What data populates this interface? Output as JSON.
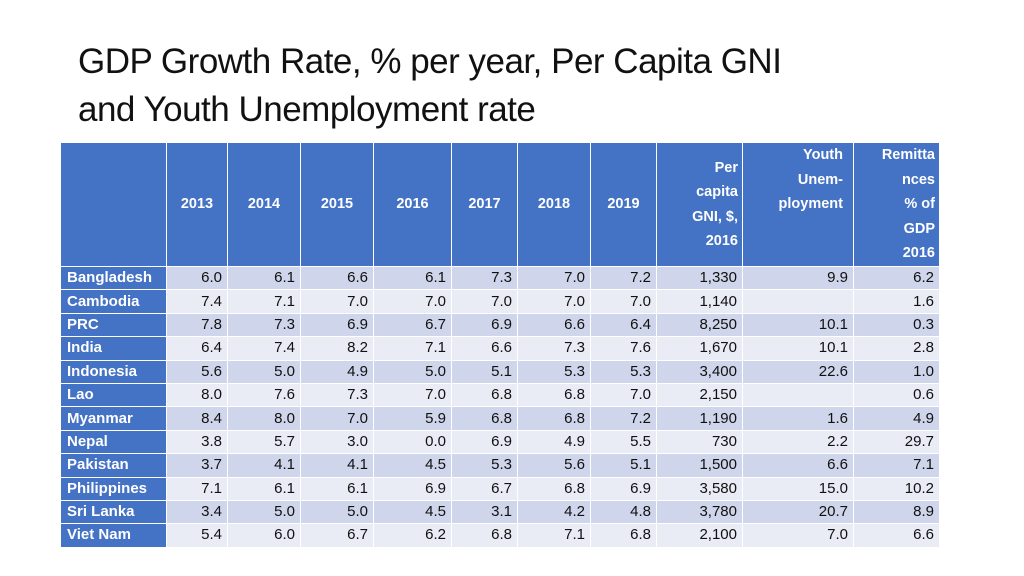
{
  "title_line1": "GDP Growth Rate, % per year, Per Capita GNI",
  "title_line2": "and Youth Unemployment rate",
  "headers": {
    "country": "",
    "y2013": "2013",
    "y2014": "2014",
    "y2015": "2015",
    "y2016": "2016",
    "y2017": "2017",
    "y2018": "2018",
    "y2019": "2019",
    "gni": [
      "Per",
      "capita",
      "GNI, $,",
      "2016"
    ],
    "youth": [
      "Youth",
      "Unem-",
      "ployment"
    ],
    "remit": [
      "Remitta",
      "nces",
      "% of",
      "GDP",
      "2016"
    ]
  },
  "rows": [
    {
      "country": "Bangladesh",
      "v": [
        "6.0",
        "6.1",
        "6.6",
        "6.1",
        "7.3",
        "7.0",
        "7.2"
      ],
      "gni": "1,330",
      "youth": "9.9",
      "remit": "6.2"
    },
    {
      "country": "Cambodia",
      "v": [
        "7.4",
        "7.1",
        "7.0",
        "7.0",
        "7.0",
        "7.0",
        "7.0"
      ],
      "gni": "1,140",
      "youth": "",
      "remit": "1.6"
    },
    {
      "country": "PRC",
      "v": [
        "7.8",
        "7.3",
        "6.9",
        "6.7",
        "6.9",
        "6.6",
        "6.4"
      ],
      "gni": "8,250",
      "youth": "10.1",
      "remit": "0.3"
    },
    {
      "country": "India",
      "v": [
        "6.4",
        "7.4",
        "8.2",
        "7.1",
        "6.6",
        "7.3",
        "7.6"
      ],
      "gni": "1,670",
      "youth": "10.1",
      "remit": "2.8"
    },
    {
      "country": "Indonesia",
      "v": [
        "5.6",
        "5.0",
        "4.9",
        "5.0",
        "5.1",
        "5.3",
        "5.3"
      ],
      "gni": "3,400",
      "youth": "22.6",
      "remit": "1.0"
    },
    {
      "country": "Lao",
      "v": [
        "8.0",
        "7.6",
        "7.3",
        "7.0",
        "6.8",
        "6.8",
        "7.0"
      ],
      "gni": "2,150",
      "youth": "",
      "remit": "0.6"
    },
    {
      "country": "Myanmar",
      "v": [
        "8.4",
        "8.0",
        "7.0",
        "5.9",
        "6.8",
        "6.8",
        "7.2"
      ],
      "gni": "1,190",
      "youth": "1.6",
      "remit": "4.9"
    },
    {
      "country": "Nepal",
      "v": [
        "3.8",
        "5.7",
        "3.0",
        "0.0",
        "6.9",
        "4.9",
        "5.5"
      ],
      "gni": "730",
      "youth": "2.2",
      "remit": "29.7"
    },
    {
      "country": "Pakistan",
      "v": [
        "3.7",
        "4.1",
        "4.1",
        "4.5",
        "5.3",
        "5.6",
        "5.1"
      ],
      "gni": "1,500",
      "youth": "6.6",
      "remit": "7.1"
    },
    {
      "country": "Philippines",
      "v": [
        "7.1",
        "6.1",
        "6.1",
        "6.9",
        "6.7",
        "6.8",
        "6.9"
      ],
      "gni": "3,580",
      "youth": "15.0",
      "remit": "10.2"
    },
    {
      "country": "Sri Lanka",
      "v": [
        "3.4",
        "5.0",
        "5.0",
        "4.5",
        "3.1",
        "4.2",
        "4.8"
      ],
      "gni": "3,780",
      "youth": "20.7",
      "remit": "8.9"
    },
    {
      "country": "Viet Nam",
      "v": [
        "5.4",
        "6.0",
        "6.7",
        "6.2",
        "6.8",
        "7.1",
        "6.8"
      ],
      "gni": "2,100",
      "youth": "7.0",
      "remit": "6.6"
    }
  ],
  "colors": {
    "header": "#4472c4",
    "band_dark": "#cfd5ea",
    "band_light": "#e9ebf5"
  }
}
